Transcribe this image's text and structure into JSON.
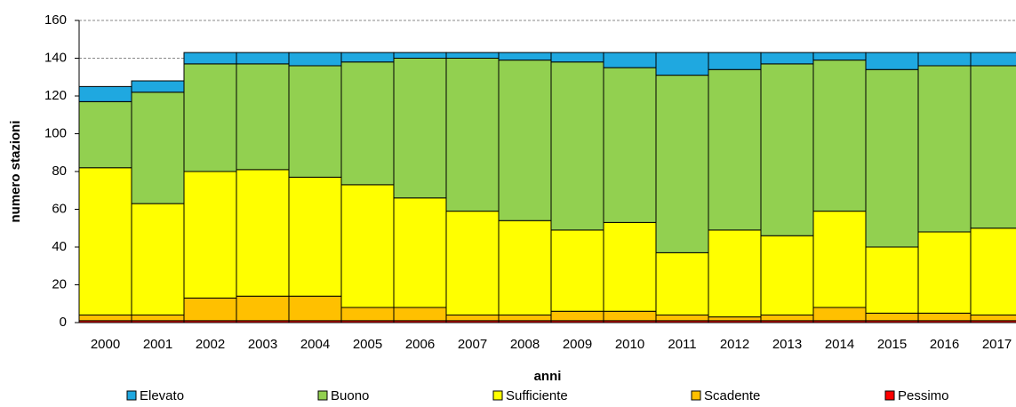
{
  "chart_data": {
    "type": "stacked_bar",
    "x_label": "anni",
    "y_label": "numero stazioni",
    "categories": [
      "2000",
      "2001",
      "2002",
      "2003",
      "2004",
      "2005",
      "2006",
      "2007",
      "2008",
      "2009",
      "2010",
      "2011",
      "2012",
      "2013",
      "2014",
      "2015",
      "2016",
      "2017"
    ],
    "series": [
      {
        "name": "Elevato",
        "color": "#1fa8e0",
        "values": [
          8,
          6,
          6,
          6,
          7,
          5,
          3,
          3,
          4,
          5,
          8,
          12,
          9,
          6,
          4,
          9,
          7,
          7
        ]
      },
      {
        "name": "Buono",
        "color": "#92d050",
        "values": [
          35,
          59,
          57,
          56,
          59,
          65,
          74,
          81,
          85,
          89,
          82,
          94,
          85,
          91,
          80,
          94,
          88,
          86
        ]
      },
      {
        "name": "Sufficiente",
        "color": "#ffff00",
        "values": [
          78,
          59,
          67,
          67,
          63,
          65,
          58,
          55,
          50,
          43,
          47,
          33,
          46,
          42,
          51,
          35,
          43,
          46
        ]
      },
      {
        "name": "Scadente",
        "color": "#ffc000",
        "values": [
          3,
          3,
          12,
          13,
          13,
          7,
          7,
          3,
          3,
          5,
          5,
          3,
          2,
          3,
          7,
          4,
          4,
          3
        ]
      },
      {
        "name": "Pessimo",
        "color": "#ff0000",
        "values": [
          1,
          1,
          1,
          1,
          1,
          1,
          1,
          1,
          1,
          1,
          1,
          1,
          1,
          1,
          1,
          1,
          1,
          1
        ]
      }
    ],
    "ylim": [
      0,
      160
    ],
    "yticks": [
      0,
      20,
      40,
      60,
      80,
      100,
      120,
      140,
      160
    ],
    "grid": true,
    "legend": "bottom"
  }
}
